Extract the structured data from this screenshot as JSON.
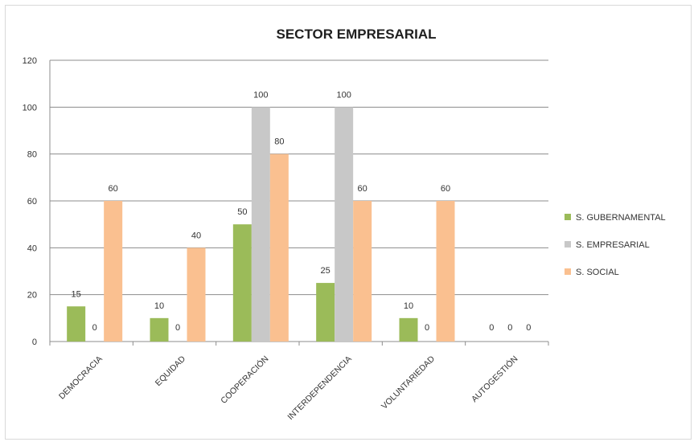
{
  "chart_data": {
    "type": "bar",
    "title": "SECTOR EMPRESARIAL",
    "xlabel": "",
    "ylabel": "",
    "ylim": [
      0,
      120
    ],
    "yticks": [
      0,
      20,
      40,
      60,
      80,
      100,
      120
    ],
    "grid": true,
    "legend_position": "right",
    "categories": [
      "DEMOCRACIA",
      "EQUIDAD",
      "COOPERACIÓN",
      "INTERDEPENDENCIA",
      "VOLUNTARIEDAD",
      "AUTOGESTIÓN"
    ],
    "series": [
      {
        "name": "S. GUBERNAMENTAL",
        "color": "#9bbb59",
        "values": [
          15,
          10,
          50,
          25,
          10,
          0
        ]
      },
      {
        "name": "S. EMPRESARIAL",
        "color": "#c8c8c8",
        "values": [
          0,
          0,
          100,
          100,
          0,
          0
        ]
      },
      {
        "name": "S. SOCIAL",
        "color": "#fac090",
        "values": [
          60,
          40,
          80,
          60,
          60,
          0
        ]
      }
    ]
  }
}
